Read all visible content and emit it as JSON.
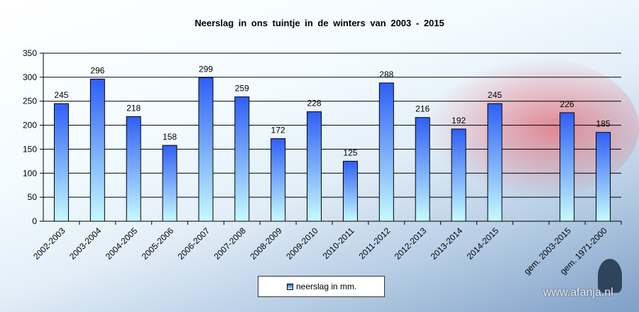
{
  "chart_data": {
    "type": "bar",
    "title": "Neerslag  in  ons  tuintje  in  de  winters  van 2003  -  2015",
    "categories": [
      "2002-2003",
      "2003-2004",
      "2004-2005",
      "2005-2006",
      "2006-2007",
      "2007-2008",
      "2008-2009",
      "2009-2010",
      "2010-2011",
      "2011-2012",
      "2012-2013",
      "2013-2014",
      "2014-2015",
      "",
      "gem. 2003-2015",
      "gem. 1971-2000"
    ],
    "series": [
      {
        "name": "neerslag in mm.",
        "values": [
          245,
          296,
          218,
          158,
          299,
          259,
          172,
          228,
          125,
          288,
          216,
          192,
          245,
          null,
          226,
          185
        ]
      }
    ],
    "ylim": [
      0,
      350
    ],
    "yticks": [
      0,
      50,
      100,
      150,
      200,
      250,
      300,
      350
    ],
    "grid": true,
    "legend": "bottom",
    "colors": {
      "bar_top": "#2f5ff5",
      "bar_bottom": "#c6fbff"
    }
  },
  "watermark": "www.afanja.nl"
}
